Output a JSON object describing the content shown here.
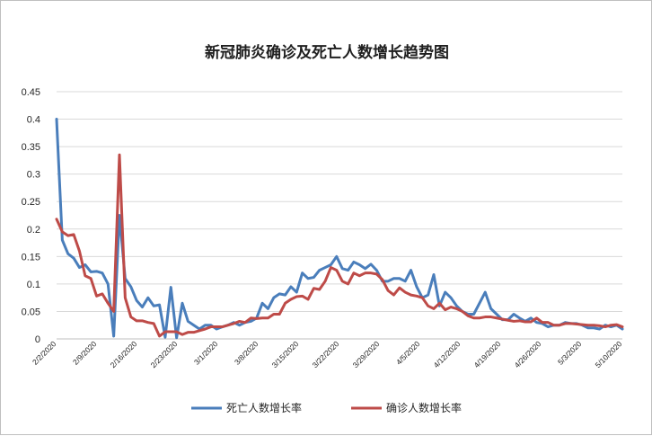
{
  "chart_data": {
    "type": "line",
    "title": "新冠肺炎确诊及死亡人数增长趋势图",
    "ylim": [
      0,
      0.45
    ],
    "y_ticks": [
      "0",
      "0.05",
      "0.1",
      "0.15",
      "0.2",
      "0.25",
      "0.3",
      "0.35",
      "0.4",
      "0.45"
    ],
    "x_tick_labels": [
      "2/2/2020",
      "2/9/2020",
      "2/16/2020",
      "2/23/2020",
      "3/1/2020",
      "3/8/2020",
      "3/15/2020",
      "3/22/2020",
      "3/29/2020",
      "4/5/2020",
      "4/12/2020",
      "4/19/2020",
      "4/26/2020",
      "5/3/2020",
      "5/10/2020"
    ],
    "grid": "horizontal",
    "legend_position": "bottom",
    "series": [
      {
        "name": "死亡人数增长率",
        "color": "#4a7ebb",
        "values": [
          0.4,
          0.18,
          0.155,
          0.147,
          0.13,
          0.135,
          0.122,
          0.123,
          0.12,
          0.1,
          0.005,
          0.225,
          0.11,
          0.095,
          0.07,
          0.058,
          0.075,
          0.06,
          0.062,
          0.003,
          0.094,
          0.002,
          0.065,
          0.032,
          0.025,
          0.018,
          0.025,
          0.025,
          0.018,
          0.022,
          0.025,
          0.03,
          0.025,
          0.03,
          0.032,
          0.038,
          0.065,
          0.055,
          0.075,
          0.082,
          0.08,
          0.095,
          0.085,
          0.12,
          0.11,
          0.112,
          0.125,
          0.13,
          0.135,
          0.15,
          0.128,
          0.125,
          0.14,
          0.135,
          0.128,
          0.136,
          0.125,
          0.105,
          0.105,
          0.11,
          0.11,
          0.105,
          0.125,
          0.095,
          0.075,
          0.08,
          0.117,
          0.06,
          0.085,
          0.075,
          0.06,
          0.05,
          0.045,
          0.045,
          0.065,
          0.085,
          0.055,
          0.045,
          0.035,
          0.035,
          0.045,
          0.038,
          0.032,
          0.038,
          0.03,
          0.028,
          0.022,
          0.025,
          0.025,
          0.03,
          0.028,
          0.028,
          0.025,
          0.02,
          0.02,
          0.018,
          0.025,
          0.022,
          0.025,
          0.018
        ]
      },
      {
        "name": "确诊人数增长率",
        "color": "#be4b48",
        "values": [
          0.218,
          0.195,
          0.188,
          0.19,
          0.16,
          0.115,
          0.11,
          0.078,
          0.082,
          0.065,
          0.05,
          0.335,
          0.075,
          0.04,
          0.033,
          0.033,
          0.03,
          0.028,
          0.005,
          0.013,
          0.013,
          0.013,
          0.008,
          0.012,
          0.012,
          0.015,
          0.018,
          0.022,
          0.022,
          0.022,
          0.025,
          0.028,
          0.032,
          0.03,
          0.038,
          0.037,
          0.038,
          0.038,
          0.045,
          0.045,
          0.065,
          0.072,
          0.077,
          0.078,
          0.072,
          0.092,
          0.09,
          0.105,
          0.13,
          0.125,
          0.105,
          0.1,
          0.12,
          0.115,
          0.12,
          0.12,
          0.118,
          0.108,
          0.088,
          0.08,
          0.093,
          0.085,
          0.08,
          0.078,
          0.075,
          0.06,
          0.055,
          0.065,
          0.053,
          0.058,
          0.055,
          0.05,
          0.042,
          0.038,
          0.038,
          0.04,
          0.04,
          0.038,
          0.036,
          0.034,
          0.032,
          0.033,
          0.031,
          0.031,
          0.038,
          0.03,
          0.03,
          0.025,
          0.025,
          0.028,
          0.028,
          0.027,
          0.026,
          0.025,
          0.025,
          0.024,
          0.022,
          0.025,
          0.026,
          0.022
        ]
      }
    ]
  }
}
